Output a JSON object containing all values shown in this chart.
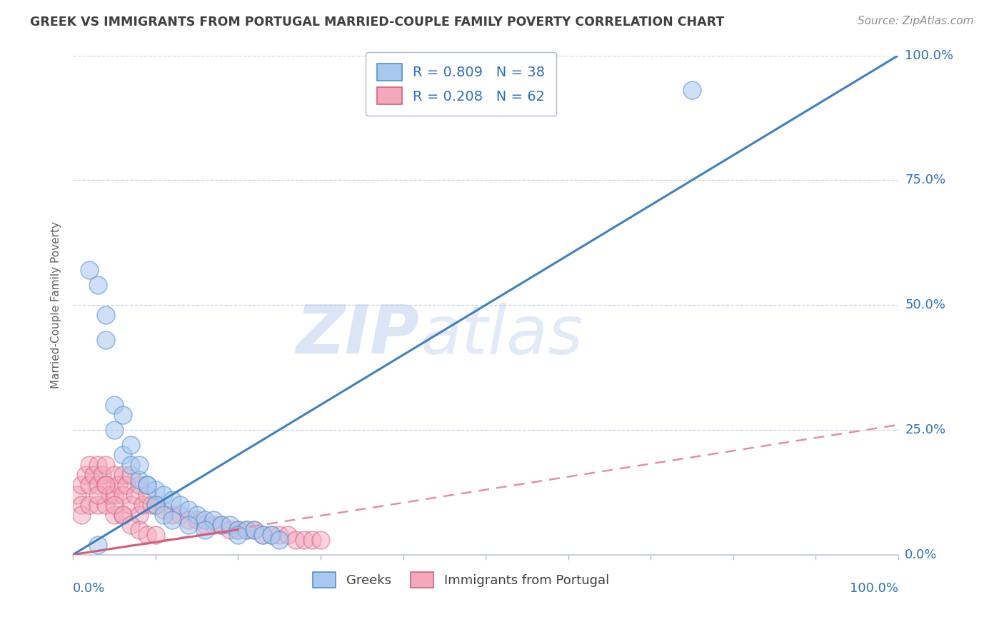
{
  "title": "GREEK VS IMMIGRANTS FROM PORTUGAL MARRIED-COUPLE FAMILY POVERTY CORRELATION CHART",
  "source": "Source: ZipAtlas.com",
  "ylabel": "Married-Couple Family Poverty",
  "ylabel_right_ticks": [
    "0.0%",
    "25.0%",
    "50.0%",
    "75.0%",
    "100.0%"
  ],
  "ylabel_right_vals": [
    0,
    25,
    50,
    75,
    100
  ],
  "watermark_zip": "ZIP",
  "watermark_atlas": "atlas",
  "legend_label_blue": "R = 0.809   N = 38",
  "legend_label_pink": "R = 0.208   N = 62",
  "bottom_legend": [
    "Greeks",
    "Immigrants from Portugal"
  ],
  "blue_fill": "#a8c8f0",
  "blue_edge": "#5090d0",
  "pink_fill": "#f4a8bc",
  "pink_edge": "#d06080",
  "blue_line_color": "#4080c0",
  "pink_line_color": "#d06080",
  "pink_dash_color": "#e090a8",
  "background_color": "#ffffff",
  "grid_color": "#c8d4e8",
  "title_color": "#404040",
  "source_color": "#909090",
  "legend_text_color": "#3070c0",
  "axis_label_color": "#3070c0",
  "ylabel_color": "#606060",
  "xlim": [
    0,
    100
  ],
  "ylim": [
    0,
    100
  ],
  "blue_x": [
    2,
    3,
    4,
    4,
    5,
    6,
    7,
    8,
    9,
    10,
    11,
    12,
    13,
    14,
    15,
    16,
    17,
    18,
    19,
    20,
    21,
    22,
    23,
    24,
    25,
    5,
    6,
    7,
    8,
    9,
    10,
    11,
    12,
    14,
    16,
    20,
    75,
    3
  ],
  "blue_y": [
    57,
    54,
    48,
    43,
    25,
    20,
    18,
    15,
    14,
    13,
    12,
    11,
    10,
    9,
    8,
    7,
    7,
    6,
    6,
    5,
    5,
    5,
    4,
    4,
    3,
    30,
    28,
    22,
    18,
    14,
    10,
    8,
    7,
    6,
    5,
    4,
    93,
    2
  ],
  "pink_x": [
    0.5,
    1,
    1,
    1,
    1.5,
    2,
    2,
    2,
    2.5,
    3,
    3,
    3,
    3.5,
    4,
    4,
    4,
    4.5,
    5,
    5,
    5,
    5.5,
    6,
    6,
    6,
    6.5,
    7,
    7,
    7.5,
    8,
    8,
    8.5,
    9,
    9.5,
    10,
    11,
    12,
    13,
    14,
    15,
    16,
    17,
    18,
    19,
    20,
    21,
    22,
    23,
    24,
    25,
    26,
    27,
    28,
    29,
    30,
    3,
    4,
    5,
    6,
    7,
    8,
    9,
    10
  ],
  "pink_y": [
    12,
    14,
    10,
    8,
    16,
    18,
    14,
    10,
    16,
    18,
    14,
    10,
    16,
    18,
    14,
    10,
    12,
    16,
    12,
    8,
    14,
    16,
    12,
    8,
    14,
    16,
    10,
    12,
    14,
    8,
    10,
    12,
    10,
    10,
    9,
    8,
    8,
    7,
    7,
    6,
    6,
    6,
    5,
    5,
    5,
    5,
    4,
    4,
    4,
    4,
    3,
    3,
    3,
    3,
    12,
    14,
    10,
    8,
    6,
    5,
    4,
    4
  ],
  "blue_line_x1": 0,
  "blue_line_y1": 0,
  "blue_line_x2": 100,
  "blue_line_y2": 100,
  "pink_solid_x1": 0,
  "pink_solid_y1": 0,
  "pink_solid_x2": 20,
  "pink_solid_y2": 5,
  "pink_dash_x1": 0,
  "pink_dash_y1": 0,
  "pink_dash_x2": 100,
  "pink_dash_y2": 26
}
